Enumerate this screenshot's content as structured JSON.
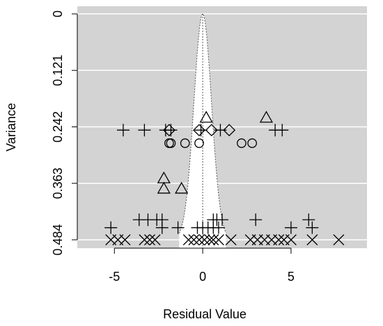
{
  "chart_data": {
    "type": "scatter",
    "title": "",
    "xlabel": "Residual Value",
    "ylabel": "Variance",
    "xlim": [
      -7.1,
      9.3
    ],
    "ylim": [
      0.484,
      0
    ],
    "y_reversed": true,
    "grid": true,
    "background": "#d3d3d3",
    "grid_color": "#ffffff",
    "x_ticks": [
      {
        "value": -5,
        "label": "-5"
      },
      {
        "value": 0,
        "label": "0"
      },
      {
        "value": 5,
        "label": "5"
      }
    ],
    "y_ticks": [
      {
        "value": 0,
        "label": "0"
      },
      {
        "value": 0.121,
        "label": "0.121"
      },
      {
        "value": 0.242,
        "label": "0.242"
      },
      {
        "value": 0.363,
        "label": "0.363"
      },
      {
        "value": 0.484,
        "label": "0.484"
      }
    ],
    "funnel": {
      "shape": "gaussian",
      "center": 0,
      "sigma": 0.5,
      "fill": "#ffffff",
      "line": "dotted"
    },
    "series": [
      {
        "marker": "plus",
        "points": [
          {
            "x": -4.5,
            "y": 0.249
          },
          {
            "x": -3.3,
            "y": 0.249
          },
          {
            "x": -2.1,
            "y": 0.249
          },
          {
            "x": -1.8,
            "y": 0.249
          },
          {
            "x": -0.1,
            "y": 0.249
          },
          {
            "x": 1.0,
            "y": 0.249
          },
          {
            "x": 4.1,
            "y": 0.249
          },
          {
            "x": 4.5,
            "y": 0.249
          },
          {
            "x": -3.6,
            "y": 0.441
          },
          {
            "x": -3.1,
            "y": 0.441
          },
          {
            "x": -2.6,
            "y": 0.441
          },
          {
            "x": -2.3,
            "y": 0.441
          },
          {
            "x": 0.6,
            "y": 0.441
          },
          {
            "x": 0.8,
            "y": 0.441
          },
          {
            "x": 1.1,
            "y": 0.441
          },
          {
            "x": 3.0,
            "y": 0.441
          },
          {
            "x": 6.0,
            "y": 0.441
          },
          {
            "x": -5.2,
            "y": 0.458
          },
          {
            "x": -2.3,
            "y": 0.458
          },
          {
            "x": -1.4,
            "y": 0.458
          },
          {
            "x": -0.3,
            "y": 0.458
          },
          {
            "x": 0.0,
            "y": 0.458
          },
          {
            "x": 0.3,
            "y": 0.458
          },
          {
            "x": 0.6,
            "y": 0.458
          },
          {
            "x": 0.9,
            "y": 0.458
          },
          {
            "x": 5.0,
            "y": 0.458
          },
          {
            "x": 6.2,
            "y": 0.458
          }
        ]
      },
      {
        "marker": "cross",
        "points": [
          {
            "x": -5.2,
            "y": 0.484
          },
          {
            "x": -4.8,
            "y": 0.484
          },
          {
            "x": -4.4,
            "y": 0.484
          },
          {
            "x": -3.3,
            "y": 0.484
          },
          {
            "x": -3.0,
            "y": 0.484
          },
          {
            "x": -2.7,
            "y": 0.484
          },
          {
            "x": -0.8,
            "y": 0.484
          },
          {
            "x": -0.5,
            "y": 0.484
          },
          {
            "x": -0.2,
            "y": 0.484
          },
          {
            "x": 0.1,
            "y": 0.484
          },
          {
            "x": 0.4,
            "y": 0.484
          },
          {
            "x": 0.6,
            "y": 0.484
          },
          {
            "x": 0.9,
            "y": 0.484
          },
          {
            "x": 1.6,
            "y": 0.484
          },
          {
            "x": 2.7,
            "y": 0.484
          },
          {
            "x": 3.1,
            "y": 0.484
          },
          {
            "x": 3.5,
            "y": 0.484
          },
          {
            "x": 3.9,
            "y": 0.484
          },
          {
            "x": 4.3,
            "y": 0.484
          },
          {
            "x": 4.6,
            "y": 0.484
          },
          {
            "x": 5.0,
            "y": 0.484
          },
          {
            "x": 6.2,
            "y": 0.484
          },
          {
            "x": 7.7,
            "y": 0.484
          }
        ]
      },
      {
        "marker": "triangle",
        "points": [
          {
            "x": 0.2,
            "y": 0.223
          },
          {
            "x": 3.6,
            "y": 0.223
          },
          {
            "x": -2.2,
            "y": 0.353
          },
          {
            "x": -2.2,
            "y": 0.375
          },
          {
            "x": -1.2,
            "y": 0.375
          }
        ]
      },
      {
        "marker": "diamond",
        "points": [
          {
            "x": -1.9,
            "y": 0.249
          },
          {
            "x": -0.2,
            "y": 0.249
          },
          {
            "x": 0.5,
            "y": 0.249
          },
          {
            "x": 1.5,
            "y": 0.249
          }
        ]
      },
      {
        "marker": "circle",
        "points": [
          {
            "x": -1.9,
            "y": 0.277
          },
          {
            "x": -1.8,
            "y": 0.277
          },
          {
            "x": -1.0,
            "y": 0.277
          },
          {
            "x": -0.2,
            "y": 0.277
          },
          {
            "x": 2.2,
            "y": 0.277
          },
          {
            "x": 2.8,
            "y": 0.277
          }
        ]
      }
    ]
  }
}
